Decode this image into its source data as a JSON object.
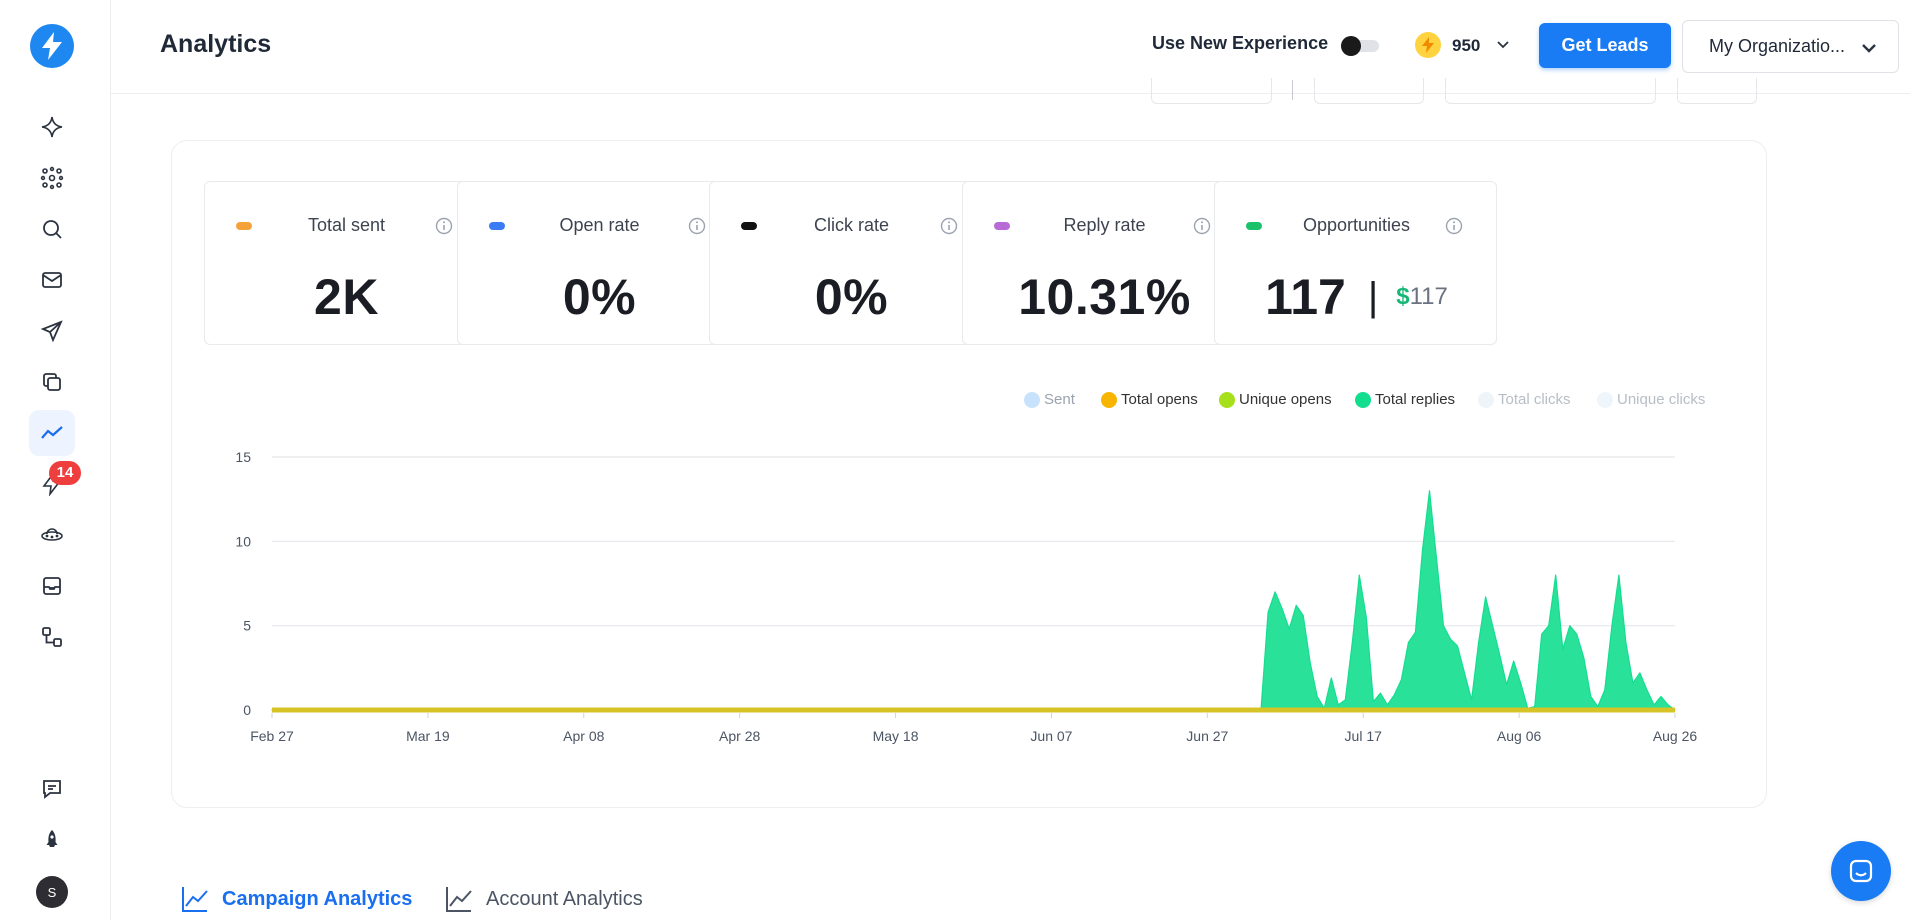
{
  "header": {
    "title": "Analytics",
    "new_experience_label": "Use New Experience",
    "credits": "950",
    "get_leads_label": "Get Leads",
    "organization": "My Organizatio..."
  },
  "sidebar": {
    "badge_count": "14",
    "avatar_initial": "S",
    "items": [
      "sparkle-icon",
      "network-icon",
      "search-icon",
      "mail-icon",
      "send-icon",
      "copy-icon",
      "analytics-icon",
      "lightning-icon",
      "ufo-icon",
      "inbox-icon",
      "flow-icon",
      "chat-list-icon",
      "rocket-icon"
    ]
  },
  "stats": [
    {
      "label": "Total sent",
      "value": "2K",
      "color": "#f5a23a"
    },
    {
      "label": "Open rate",
      "value": "0%",
      "color": "#3b7cf6"
    },
    {
      "label": "Click rate",
      "value": "0%",
      "color": "#111111"
    },
    {
      "label": "Reply rate",
      "value": "10.31%",
      "color": "#b86ad6"
    },
    {
      "label": "Opportunities",
      "value": "117",
      "money_symbol": "$",
      "money_value": "117",
      "color": "#19c26b"
    }
  ],
  "chart_data": {
    "type": "area",
    "x": [
      "Feb 27",
      "Mar 19",
      "Apr 08",
      "Apr 28",
      "May 18",
      "Jun 07",
      "Jun 27",
      "Jul 17",
      "Aug 06",
      "Aug 26"
    ],
    "ylim": [
      0,
      15
    ],
    "yticks": [
      0,
      5,
      10,
      15
    ],
    "legend_position": "top-right",
    "grid": true,
    "series": [
      {
        "name": "Sent",
        "color": "#c8e2fb",
        "muted": false,
        "text_color": "#9aa3ad"
      },
      {
        "name": "Total opens",
        "color": "#f7b500",
        "muted": false,
        "text_color": "#333333"
      },
      {
        "name": "Unique opens",
        "color": "#a6e01a",
        "muted": false,
        "text_color": "#333333"
      },
      {
        "name": "Total replies",
        "color": "#13de8f",
        "muted": false,
        "text_color": "#333333"
      },
      {
        "name": "Total clicks",
        "color": "#eef4f8",
        "muted": true,
        "text_color": "#b8bec6"
      },
      {
        "name": "Unique clicks",
        "color": "#eef6fb",
        "muted": true,
        "text_color": "#b8bec6"
      }
    ],
    "replies_points": [
      [
        0,
        0
      ],
      [
        140,
        0
      ],
      [
        141,
        0.1
      ],
      [
        142,
        5.8
      ],
      [
        143,
        7.0
      ],
      [
        144,
        6.0
      ],
      [
        145,
        4.8
      ],
      [
        146,
        6.2
      ],
      [
        147,
        5.6
      ],
      [
        148,
        2.8
      ],
      [
        149,
        0.8
      ],
      [
        150,
        0.1
      ],
      [
        151,
        1.9
      ],
      [
        152,
        0.3
      ],
      [
        153,
        0.6
      ],
      [
        154,
        4.0
      ],
      [
        155,
        8.0
      ],
      [
        156,
        5.5
      ],
      [
        157,
        0.5
      ],
      [
        158,
        1.0
      ],
      [
        159,
        0.3
      ],
      [
        160,
        0.9
      ],
      [
        161,
        1.8
      ],
      [
        162,
        4.0
      ],
      [
        163,
        4.6
      ],
      [
        164,
        9.5
      ],
      [
        165,
        13.0
      ],
      [
        166,
        9.0
      ],
      [
        167,
        5.0
      ],
      [
        168,
        4.2
      ],
      [
        169,
        3.8
      ],
      [
        170,
        2.2
      ],
      [
        171,
        0.6
      ],
      [
        172,
        4.0
      ],
      [
        173,
        6.7
      ],
      [
        174,
        5.0
      ],
      [
        175,
        3.3
      ],
      [
        176,
        1.5
      ],
      [
        177,
        2.9
      ],
      [
        178,
        1.6
      ],
      [
        179,
        0.1
      ],
      [
        180,
        0.2
      ],
      [
        181,
        4.5
      ],
      [
        182,
        5.0
      ],
      [
        183,
        8.0
      ],
      [
        184,
        3.6
      ],
      [
        185,
        5.0
      ],
      [
        186,
        4.5
      ],
      [
        187,
        3.1
      ],
      [
        188,
        0.8
      ],
      [
        189,
        0.2
      ],
      [
        190,
        1.2
      ],
      [
        191,
        5.0
      ],
      [
        192,
        8.0
      ],
      [
        193,
        4.0
      ],
      [
        194,
        1.6
      ],
      [
        195,
        2.2
      ],
      [
        196,
        1.2
      ],
      [
        197,
        0.3
      ],
      [
        198,
        0.8
      ],
      [
        199,
        0.3
      ],
      [
        200,
        0
      ]
    ],
    "x_max": 200
  },
  "tabs": {
    "campaign": "Campaign Analytics",
    "account": "Account Analytics"
  }
}
